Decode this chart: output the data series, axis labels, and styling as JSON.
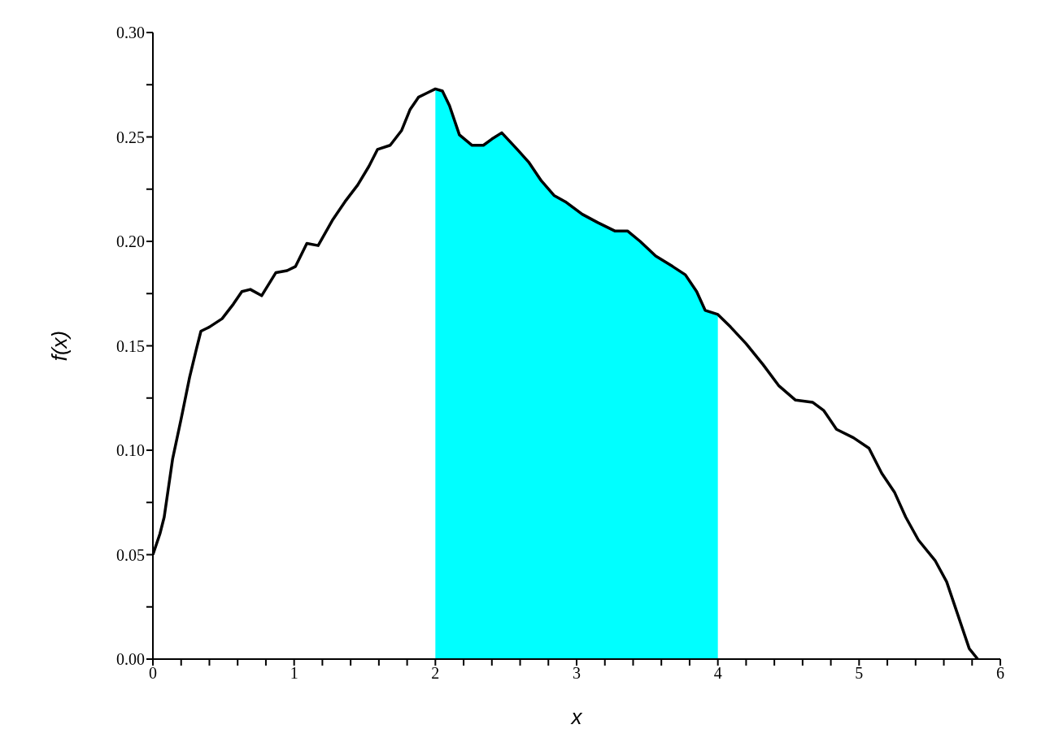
{
  "chart_data": {
    "type": "line",
    "xlabel": "x",
    "ylabel": "f(x)",
    "xlim": [
      0,
      6
    ],
    "xticks": [
      0,
      {
        "value": 0.2,
        "label": null
      },
      {
        "value": 0.4,
        "label": null
      },
      {
        "value": 0.6,
        "label": null
      },
      {
        "value": 0.8,
        "label": null
      },
      1,
      {
        "value": 1.2,
        "label": null
      },
      {
        "value": 1.4,
        "label": null
      },
      {
        "value": 1.6,
        "label": null
      },
      {
        "value": 1.8,
        "label": null
      },
      2,
      {
        "value": 2.2,
        "label": null
      },
      {
        "value": 2.4,
        "label": null
      },
      {
        "value": 2.6,
        "label": null
      },
      {
        "value": 2.8,
        "label": null
      },
      3,
      {
        "value": 3.2,
        "label": null
      },
      {
        "value": 3.4,
        "label": null
      },
      {
        "value": 3.6,
        "label": null
      },
      {
        "value": 3.8,
        "label": null
      },
      4,
      {
        "value": 4.2,
        "label": null
      },
      {
        "value": 4.4,
        "label": null
      },
      {
        "value": 4.6,
        "label": null
      },
      {
        "value": 4.8,
        "label": null
      },
      5,
      {
        "value": 5.2,
        "label": null
      },
      {
        "value": 5.4,
        "label": null
      },
      {
        "value": 5.6,
        "label": null
      },
      {
        "value": 5.8,
        "label": null
      },
      6
    ],
    "ylim": [
      0,
      0.3
    ],
    "yticks": [
      {
        "value": 0,
        "label": "0.00"
      },
      {
        "value": 0.025,
        "label": null
      },
      {
        "value": 0.05,
        "label": "0.05"
      },
      {
        "value": 0.075,
        "label": null
      },
      {
        "value": 0.1,
        "label": "0.10"
      },
      {
        "value": 0.125,
        "label": null
      },
      {
        "value": 0.15,
        "label": "0.15"
      },
      {
        "value": 0.175,
        "label": null
      },
      {
        "value": 0.2,
        "label": "0.20"
      },
      {
        "value": 0.225,
        "label": null
      },
      {
        "value": 0.25,
        "label": "0.25"
      },
      {
        "value": 0.275,
        "label": null
      },
      {
        "value": 0.3,
        "label": "0.30"
      }
    ],
    "series": [
      {
        "type": "area",
        "color": "#00ffff",
        "x": [
          2.0,
          2.05,
          2.1,
          2.17,
          2.26,
          2.34,
          2.4,
          2.47,
          2.58,
          2.66,
          2.75,
          2.84,
          2.92,
          3.04,
          3.15,
          3.27,
          3.36,
          3.45,
          3.56,
          3.68,
          3.77,
          3.85,
          3.91,
          4.0
        ],
        "values": [
          0.273,
          0.272,
          0.265,
          0.251,
          0.246,
          0.246,
          0.249,
          0.252,
          0.244,
          0.238,
          0.229,
          0.222,
          0.219,
          0.213,
          0.209,
          0.205,
          0.205,
          0.2,
          0.193,
          0.188,
          0.184,
          0.176,
          0.167,
          0.165
        ]
      },
      {
        "color": "#000000",
        "x": [
          0,
          0.05,
          0.08,
          0.14,
          0.2,
          0.26,
          0.31,
          0.34,
          0.4,
          0.49,
          0.57,
          0.63,
          0.69,
          0.77,
          0.87,
          0.95,
          1.01,
          1.09,
          1.17,
          1.27,
          1.36,
          1.45,
          1.53,
          1.59,
          1.68,
          1.76,
          1.82,
          1.88,
          1.94,
          2.0,
          2.05,
          2.1,
          2.17,
          2.26,
          2.34,
          2.4,
          2.47,
          2.58,
          2.66,
          2.75,
          2.84,
          2.92,
          3.04,
          3.15,
          3.27,
          3.36,
          3.45,
          3.56,
          3.68,
          3.77,
          3.85,
          3.91,
          4.0,
          4.09,
          4.2,
          4.32,
          4.43,
          4.55,
          4.67,
          4.75,
          4.84,
          4.96,
          5.07,
          5.16,
          5.25,
          5.33,
          5.42,
          5.54,
          5.62,
          5.71,
          5.78,
          5.84
        ],
        "values": [
          0.05,
          0.06,
          0.068,
          0.096,
          0.115,
          0.135,
          0.149,
          0.157,
          0.159,
          0.163,
          0.17,
          0.176,
          0.177,
          0.174,
          0.185,
          0.186,
          0.188,
          0.199,
          0.198,
          0.21,
          0.219,
          0.227,
          0.236,
          0.244,
          0.246,
          0.253,
          0.263,
          0.269,
          0.271,
          0.273,
          0.272,
          0.265,
          0.251,
          0.246,
          0.246,
          0.249,
          0.252,
          0.244,
          0.238,
          0.229,
          0.222,
          0.219,
          0.213,
          0.209,
          0.205,
          0.205,
          0.2,
          0.193,
          0.188,
          0.184,
          0.176,
          0.167,
          0.165,
          0.159,
          0.151,
          0.141,
          0.131,
          0.124,
          0.123,
          0.119,
          0.11,
          0.106,
          0.101,
          0.089,
          0.08,
          0.068,
          0.057,
          0.047,
          0.037,
          0.019,
          0.005,
          0
        ]
      }
    ]
  }
}
